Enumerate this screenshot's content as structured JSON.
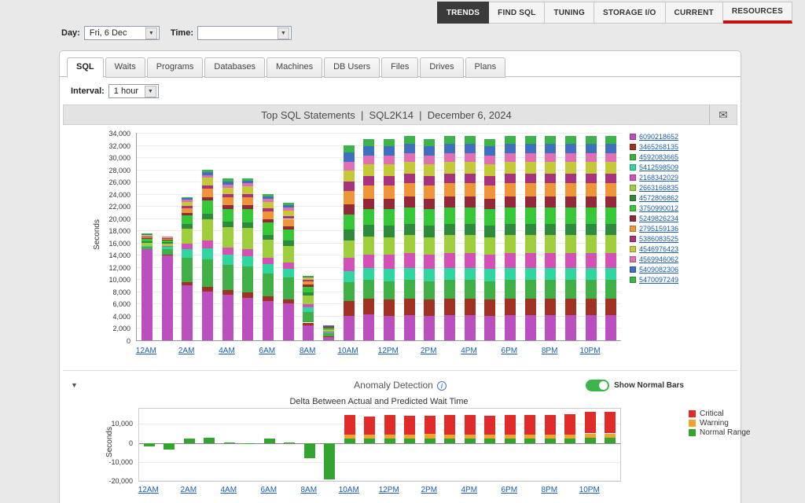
{
  "colors": {
    "link": "#1a5dab",
    "nav_active_bg": "#3a3a3a",
    "resources_underline": "#c11212",
    "toggle_on": "#3cb54a",
    "panel_bg": "#ffffff",
    "header_bar_bg": "#e3e3e3"
  },
  "icons": {
    "mail": "✉",
    "collapse": "▼",
    "dropdown": "▼",
    "info": "i"
  },
  "top_nav": {
    "items": [
      {
        "label": "TRENDS",
        "active": true
      },
      {
        "label": "FIND SQL"
      },
      {
        "label": "TUNING"
      },
      {
        "label": "STORAGE I/O"
      },
      {
        "label": "CURRENT"
      },
      {
        "label": "RESOURCES",
        "underline": true
      }
    ]
  },
  "filters": {
    "day_label": "Day:",
    "day_value": "Fri, 6 Dec",
    "time_label": "Time:",
    "time_value": ""
  },
  "view_tabs": {
    "active": "SQL",
    "items": [
      "SQL",
      "Waits",
      "Programs",
      "Databases",
      "Machines",
      "DB Users",
      "Files",
      "Drives",
      "Plans"
    ]
  },
  "interval": {
    "label": "Interval:",
    "value": "1 hour"
  },
  "report_header": {
    "title": "Top SQL Statements  |  SQL2K14  |  December 6, 2024"
  },
  "anomaly": {
    "title": "Anomaly Detection",
    "toggle_label": "Show Normal Bars",
    "subtitle": "Delta Between Actual and Predicted Wait Time"
  },
  "chart_data": [
    {
      "type": "bar",
      "stacked": true,
      "title": "Top SQL Statements",
      "xlabel": "",
      "ylabel": "Seconds",
      "ylim": [
        0,
        34000
      ],
      "ytick_step": 2000,
      "grid": true,
      "legend_position": "right",
      "x": [
        "12AM",
        "1AM",
        "2AM",
        "3AM",
        "4AM",
        "5AM",
        "6AM",
        "7AM",
        "8AM",
        "9AM",
        "10AM",
        "11AM",
        "12PM",
        "1PM",
        "2PM",
        "3PM",
        "4PM",
        "5PM",
        "6PM",
        "7PM",
        "8PM",
        "9PM",
        "10PM",
        "11PM"
      ],
      "xtick_labels": [
        "12AM",
        "2AM",
        "4AM",
        "6AM",
        "8AM",
        "10AM",
        "12PM",
        "2PM",
        "4PM",
        "6PM",
        "8PM",
        "10PM"
      ],
      "series": [
        {
          "name": "6090218652",
          "color": "#bc4fc0"
        },
        {
          "name": "3465268135",
          "color": "#a03123"
        },
        {
          "name": "4592083665",
          "color": "#3faf46"
        },
        {
          "name": "5412598509",
          "color": "#2fd6a0"
        },
        {
          "name": "2168342029",
          "color": "#d44fb6"
        },
        {
          "name": "2663166835",
          "color": "#9fce3d"
        },
        {
          "name": "4572806862",
          "color": "#2e8b3d"
        },
        {
          "name": "3750990012",
          "color": "#37c837"
        },
        {
          "name": "5249826234",
          "color": "#93283a"
        },
        {
          "name": "2795159136",
          "color": "#f09537"
        },
        {
          "name": "5386083525",
          "color": "#a8327e"
        },
        {
          "name": "4546976423",
          "color": "#c3c937"
        },
        {
          "name": "4569946062",
          "color": "#e06fb4"
        },
        {
          "name": "5409082306",
          "color": "#3f6fbf"
        },
        {
          "name": "5470097249",
          "color": "#3bb54a"
        }
      ],
      "values_by_hour": [
        [
          15000,
          0,
          300,
          200,
          0,
          500,
          200,
          400,
          150,
          200,
          100,
          250,
          100,
          50,
          50
        ],
        [
          14000,
          100,
          800,
          400,
          100,
          500,
          200,
          300,
          100,
          200,
          100,
          150,
          50,
          0,
          0
        ],
        [
          9000,
          500,
          4000,
          1500,
          800,
          2500,
          700,
          1500,
          400,
          800,
          300,
          700,
          300,
          300,
          200
        ],
        [
          8000,
          800,
          4500,
          1800,
          1200,
          3500,
          900,
          2200,
          600,
          1400,
          500,
          1200,
          500,
          500,
          400
        ],
        [
          7500,
          700,
          4200,
          1700,
          1100,
          3300,
          900,
          2100,
          600,
          1300,
          500,
          1100,
          500,
          500,
          500
        ],
        [
          7000,
          800,
          4300,
          1700,
          1200,
          3400,
          900,
          2200,
          600,
          1400,
          500,
          1200,
          500,
          400,
          400
        ],
        [
          6500,
          700,
          3800,
          1500,
          1000,
          3000,
          800,
          2000,
          500,
          1300,
          500,
          1100,
          500,
          400,
          400
        ],
        [
          6000,
          700,
          3600,
          1400,
          1000,
          2800,
          800,
          1900,
          500,
          1200,
          400,
          1000,
          450,
          400,
          350
        ],
        [
          2500,
          400,
          1800,
          700,
          500,
          1500,
          400,
          1000,
          300,
          600,
          200,
          400,
          100,
          50,
          50
        ],
        [
          500,
          100,
          500,
          200,
          100,
          400,
          100,
          250,
          50,
          100,
          50,
          100,
          25,
          15,
          10
        ],
        [
          4000,
          2500,
          3000,
          1800,
          2200,
          2800,
          1800,
          2500,
          1700,
          2200,
          1500,
          1800,
          1500,
          1500,
          1200
        ],
        [
          4200,
          2600,
          3100,
          1900,
          2300,
          2900,
          1900,
          2600,
          1700,
          2200,
          1500,
          1900,
          1500,
          1500,
          1200
        ],
        [
          4000,
          2700,
          3000,
          2000,
          2400,
          2800,
          1900,
          2700,
          1700,
          2200,
          1500,
          1900,
          1500,
          1500,
          1200
        ],
        [
          4100,
          2700,
          3100,
          2000,
          2400,
          2900,
          1900,
          2700,
          1800,
          2200,
          1500,
          1900,
          1500,
          1500,
          1300
        ],
        [
          4000,
          2700,
          3000,
          2000,
          2400,
          2800,
          1900,
          2700,
          1700,
          2200,
          1500,
          1900,
          1500,
          1500,
          1200
        ],
        [
          4100,
          2700,
          3100,
          2000,
          2400,
          2900,
          1900,
          2700,
          1800,
          2200,
          1500,
          1900,
          1500,
          1500,
          1300
        ],
        [
          4100,
          2700,
          3100,
          2000,
          2400,
          2900,
          1900,
          2700,
          1800,
          2200,
          1500,
          1900,
          1500,
          1500,
          1300
        ],
        [
          4000,
          2700,
          3000,
          2000,
          2400,
          2800,
          1900,
          2700,
          1700,
          2200,
          1500,
          1900,
          1500,
          1500,
          1200
        ],
        [
          4100,
          2700,
          3100,
          2000,
          2400,
          2900,
          1900,
          2700,
          1800,
          2200,
          1500,
          1900,
          1500,
          1500,
          1300
        ],
        [
          4100,
          2700,
          3100,
          2000,
          2400,
          2900,
          1900,
          2700,
          1800,
          2200,
          1500,
          1900,
          1500,
          1500,
          1300
        ],
        [
          4100,
          2700,
          3100,
          2000,
          2400,
          2900,
          1900,
          2700,
          1800,
          2200,
          1500,
          1900,
          1500,
          1500,
          1300
        ],
        [
          4100,
          2700,
          3100,
          2000,
          2400,
          2900,
          1900,
          2700,
          1800,
          2200,
          1500,
          1900,
          1500,
          1500,
          1300
        ],
        [
          4100,
          2700,
          3100,
          2000,
          2400,
          2900,
          1900,
          2700,
          1800,
          2200,
          1500,
          1900,
          1500,
          1500,
          1300
        ],
        [
          4100,
          2700,
          3100,
          2000,
          2400,
          2900,
          1900,
          2700,
          1800,
          2200,
          1500,
          1900,
          1500,
          1500,
          1300
        ]
      ]
    },
    {
      "type": "bar",
      "stacked": true,
      "title": "Delta Between Actual and Predicted Wait Time",
      "xlabel": "",
      "ylabel": "Seconds",
      "ylim": [
        -20000,
        18000
      ],
      "yticks": [
        10000,
        0,
        -10000,
        -20000
      ],
      "grid": true,
      "legend_position": "right",
      "x": [
        "12AM",
        "1AM",
        "2AM",
        "3AM",
        "4AM",
        "5AM",
        "6AM",
        "7AM",
        "8AM",
        "9AM",
        "10AM",
        "11AM",
        "12PM",
        "1PM",
        "2PM",
        "3PM",
        "4PM",
        "5PM",
        "6PM",
        "7PM",
        "8PM",
        "9PM",
        "10PM",
        "11PM"
      ],
      "xtick_labels": [
        "12AM",
        "2AM",
        "4AM",
        "6AM",
        "8AM",
        "10AM",
        "12PM",
        "2PM",
        "4PM",
        "6PM",
        "8PM",
        "10PM"
      ],
      "series": [
        {
          "name": "Critical",
          "color": "#e02b2b"
        },
        {
          "name": "Warning",
          "color": "#f0a32f"
        },
        {
          "name": "Normal Range",
          "color": "#33a42e"
        }
      ],
      "values_by_hour": [
        [
          0,
          0,
          -2000
        ],
        [
          0,
          0,
          -3500
        ],
        [
          0,
          0,
          2200
        ],
        [
          0,
          0,
          2800
        ],
        [
          0,
          0,
          300
        ],
        [
          0,
          0,
          -400
        ],
        [
          0,
          0,
          2500
        ],
        [
          0,
          0,
          300
        ],
        [
          0,
          0,
          -8000
        ],
        [
          0,
          0,
          -19000
        ],
        [
          10000,
          2000,
          2500
        ],
        [
          9500,
          2000,
          2500
        ],
        [
          10000,
          2000,
          2500
        ],
        [
          9800,
          2000,
          2500
        ],
        [
          9500,
          2200,
          2500
        ],
        [
          10200,
          2000,
          2500
        ],
        [
          10000,
          2000,
          2500
        ],
        [
          9700,
          2000,
          2500
        ],
        [
          10300,
          2000,
          2500
        ],
        [
          10000,
          2000,
          2500
        ],
        [
          10200,
          2000,
          2500
        ],
        [
          10500,
          2000,
          2500
        ],
        [
          11500,
          2200,
          2800
        ],
        [
          11500,
          2200,
          2800
        ]
      ]
    }
  ]
}
